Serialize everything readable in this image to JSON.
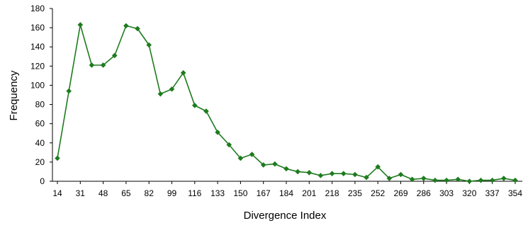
{
  "chart_data": {
    "type": "line",
    "xlabel": "Divergence Index",
    "ylabel": "Frequency",
    "ylim": [
      0,
      180
    ],
    "y_ticks": [
      0,
      20,
      40,
      60,
      80,
      100,
      120,
      140,
      160,
      180
    ],
    "x_tick_labels": [
      "14",
      "31",
      "48",
      "65",
      "82",
      "99",
      "116",
      "133",
      "150",
      "167",
      "184",
      "201",
      "218",
      "235",
      "252",
      "269",
      "286",
      "303",
      "320",
      "337",
      "354"
    ],
    "grid": false,
    "legend": "none",
    "series_color": "#1e7b1e",
    "series": [
      {
        "x": [
          14,
          22.5,
          31,
          39.5,
          48,
          56.5,
          65,
          73.5,
          82,
          90.5,
          99,
          107.5,
          116,
          124.5,
          133,
          141.5,
          150,
          158.5,
          167,
          175.5,
          184,
          192.5,
          201,
          209.5,
          218,
          226.5,
          235,
          243.5,
          252,
          260.5,
          269,
          277.5,
          286,
          294.5,
          303,
          311.5,
          320,
          328.5,
          337,
          345.5,
          354
        ],
        "values": [
          24,
          94,
          163,
          121,
          121,
          131,
          162,
          159,
          142,
          91,
          96,
          113,
          79,
          73,
          51,
          38,
          24,
          28,
          17,
          18,
          13,
          10,
          9,
          6,
          8,
          8,
          7,
          4,
          15,
          3,
          7,
          2,
          3,
          1,
          1,
          2,
          0,
          1,
          1,
          3,
          1
        ]
      }
    ]
  }
}
